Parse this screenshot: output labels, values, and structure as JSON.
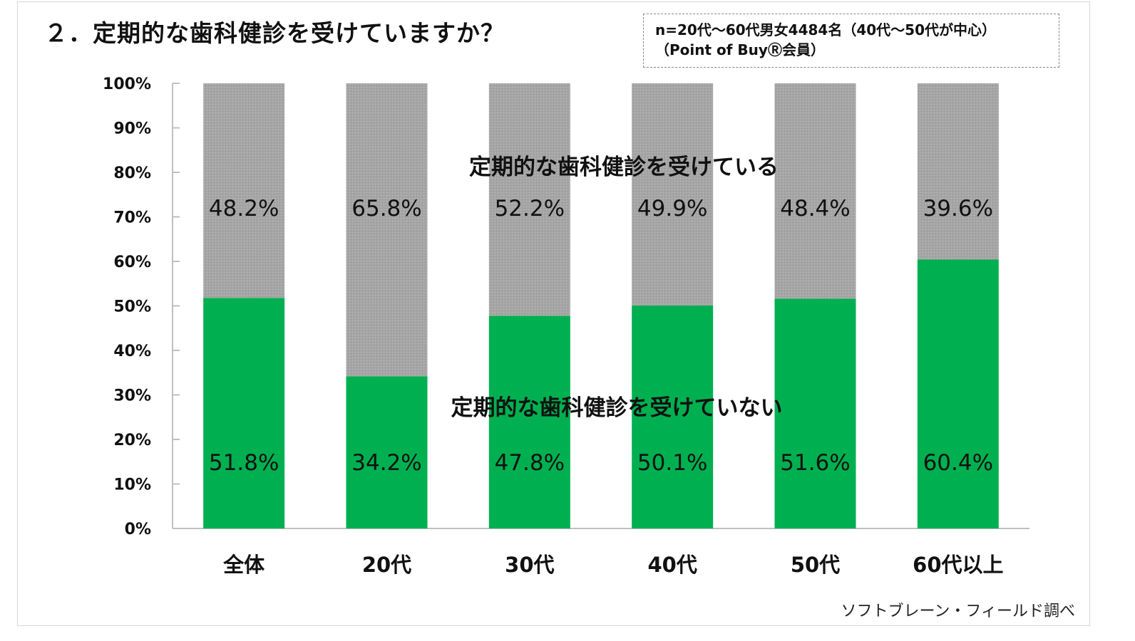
{
  "title": "２．定期的な歯科健診を受けていますか？",
  "note": {
    "line1": "n=20代〜60代男女4484名（40代〜50代が中心）",
    "line2": "（Point of BuyⓇ会員）"
  },
  "source": "ソフトブレーン・フィールド調べ",
  "colors": {
    "green": "#00b050",
    "gray": "#a6a6a6",
    "axis": "#bfbfbf"
  },
  "chart_data": {
    "type": "bar",
    "stacked": true,
    "categories": [
      "全体",
      "20代",
      "30代",
      "40代",
      "50代",
      "60代以上"
    ],
    "series": [
      {
        "name": "定期的な歯科健診を受けていない",
        "values": [
          51.8,
          34.2,
          47.8,
          50.1,
          51.6,
          60.4
        ],
        "labels": [
          "51.8%",
          "34.2%",
          "47.8%",
          "50.1%",
          "51.6%",
          "60.4%"
        ]
      },
      {
        "name": "定期的な歯科健診を受けている",
        "values": [
          48.2,
          65.8,
          52.2,
          49.9,
          48.4,
          39.6
        ],
        "labels": [
          "48.2%",
          "65.8%",
          "52.2%",
          "49.9%",
          "48.4%",
          "39.6%"
        ]
      }
    ],
    "ylim": [
      0,
      100
    ],
    "yticks": [
      "0%",
      "10%",
      "20%",
      "30%",
      "40%",
      "50%",
      "60%",
      "70%",
      "80%",
      "90%",
      "100%"
    ],
    "grid": false,
    "legend": "inline labels on bars"
  }
}
